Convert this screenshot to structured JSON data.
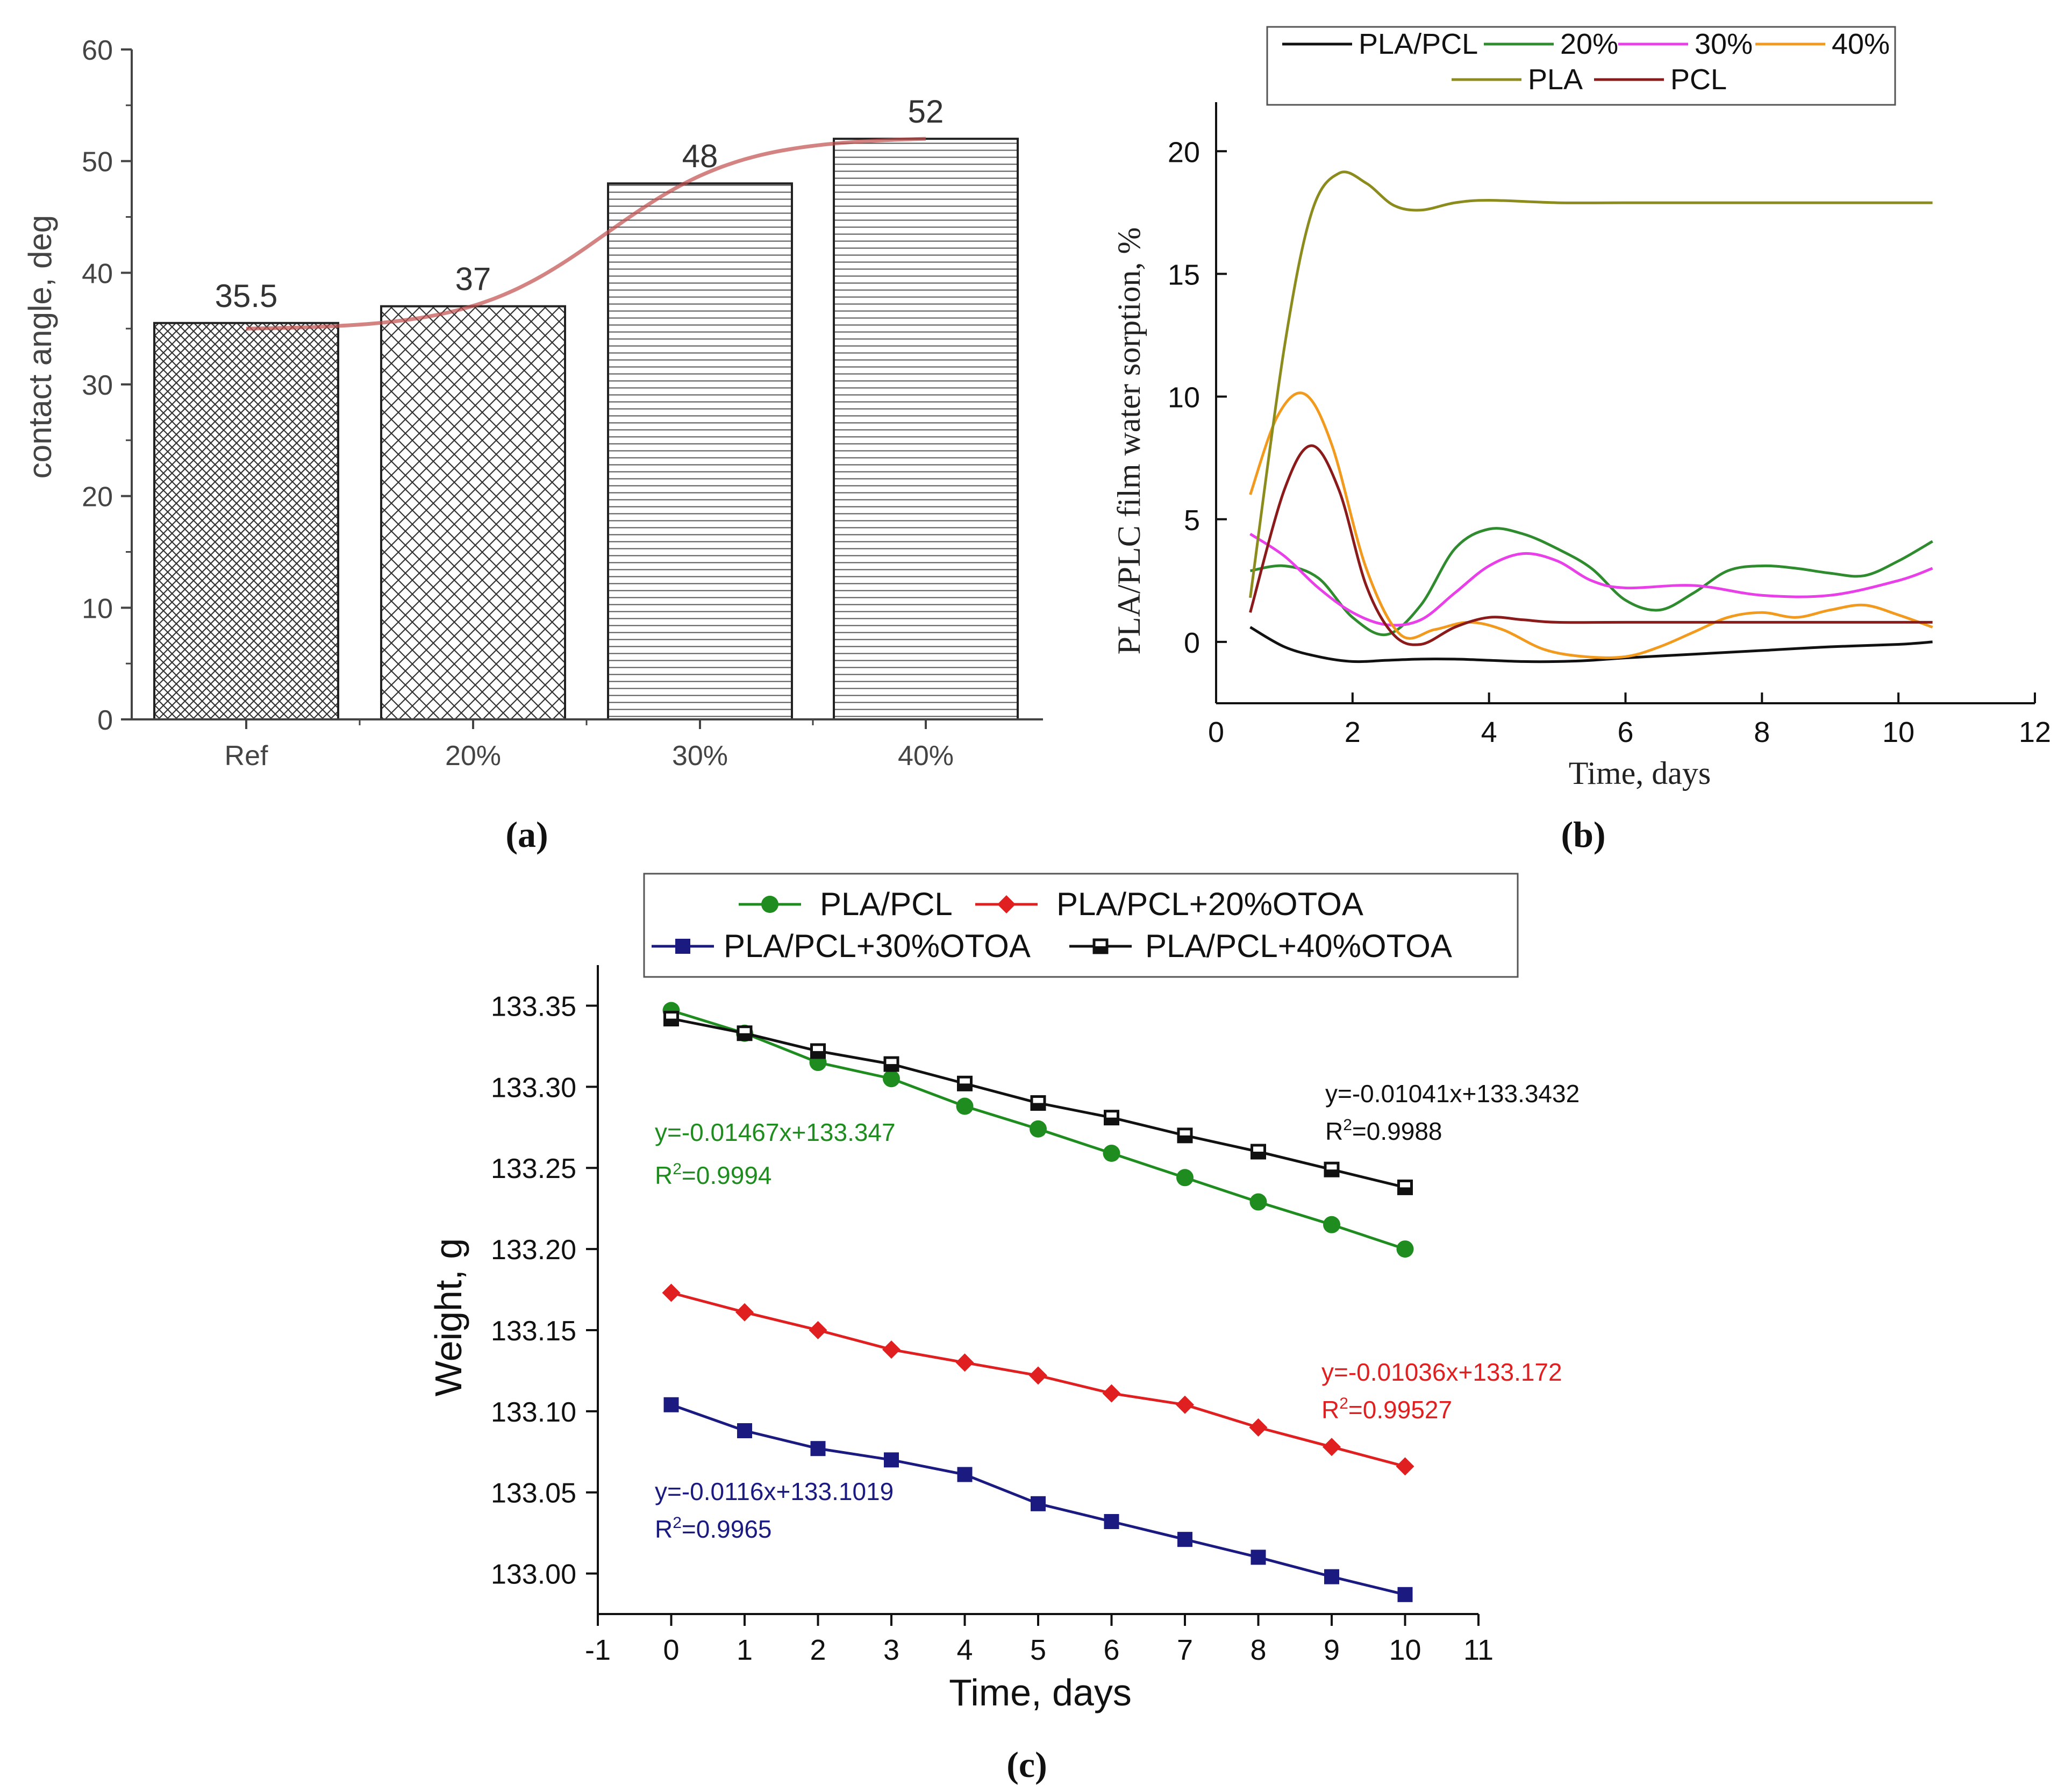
{
  "panel_labels": {
    "a": "(a)",
    "b": "(b)",
    "c": "(c)"
  },
  "chart_data": [
    {
      "id": "a",
      "type": "bar",
      "title": "",
      "xlabel": "",
      "ylabel": "contact angle, deg",
      "categories": [
        "Ref",
        "20%",
        "30%",
        "40%"
      ],
      "values": [
        35.5,
        37,
        48,
        52
      ],
      "data_labels": [
        "35.5",
        "37",
        "48",
        "52"
      ],
      "ylim": [
        0,
        60
      ],
      "yticks": [
        "0",
        "10",
        "20",
        "30",
        "40",
        "50",
        "60"
      ],
      "grid": false,
      "trend_curve_color": "#c0504d",
      "bar_patterns": [
        "dense-crosshatch",
        "crosshatch",
        "horizontal-lines",
        "horizontal-lines"
      ]
    },
    {
      "id": "b",
      "type": "line",
      "title": "",
      "xlabel": "Time, days",
      "ylabel": "PLA/PLC film water sorption, %",
      "xlim": [
        0,
        12
      ],
      "ylim": [
        -2.5,
        22
      ],
      "xticks": [
        "0",
        "2",
        "4",
        "6",
        "8",
        "10",
        "12"
      ],
      "yticks": [
        "0",
        "5",
        "10",
        "15",
        "20"
      ],
      "grid": false,
      "legend_position": "top",
      "series": [
        {
          "name": "PLA/PCL",
          "color": "#111111",
          "x": [
            0.5,
            1,
            1.5,
            2,
            2.5,
            3,
            3.5,
            4,
            4.5,
            5,
            5.5,
            6,
            7,
            8,
            9,
            10,
            10.5
          ],
          "y": [
            0.6,
            -0.2,
            -0.6,
            -0.8,
            -0.75,
            -0.7,
            -0.7,
            -0.75,
            -0.8,
            -0.8,
            -0.75,
            -0.65,
            -0.5,
            -0.35,
            -0.2,
            -0.1,
            0.0
          ]
        },
        {
          "name": "20%",
          "color": "#2e8b2e",
          "x": [
            0.5,
            1,
            1.5,
            2,
            2.5,
            3,
            3.5,
            4,
            4.5,
            5,
            5.5,
            6,
            6.5,
            7,
            7.5,
            8,
            8.5,
            9,
            9.5,
            10,
            10.5
          ],
          "y": [
            2.9,
            3.1,
            2.6,
            1.0,
            0.3,
            1.5,
            3.8,
            4.6,
            4.4,
            3.8,
            3.0,
            1.7,
            1.3,
            2.0,
            2.9,
            3.1,
            3.0,
            2.8,
            2.7,
            3.3,
            4.1
          ]
        },
        {
          "name": "30%",
          "color": "#e83fe8",
          "x": [
            0.5,
            1,
            1.5,
            2,
            2.5,
            3,
            3.5,
            4,
            4.5,
            5,
            5.5,
            6,
            7,
            8,
            9,
            10,
            10.5
          ],
          "y": [
            4.4,
            3.5,
            2.2,
            1.2,
            0.7,
            0.9,
            2.0,
            3.1,
            3.6,
            3.3,
            2.5,
            2.2,
            2.3,
            1.9,
            1.9,
            2.5,
            3.0
          ]
        },
        {
          "name": "40%",
          "color": "#f29a1e",
          "x": [
            0.5,
            0.9,
            1.3,
            1.7,
            2.2,
            2.7,
            3.2,
            3.7,
            4.2,
            4.8,
            5.4,
            6,
            6.5,
            7,
            7.5,
            8,
            8.5,
            9,
            9.5,
            10,
            10.5
          ],
          "y": [
            6.0,
            9.2,
            10.1,
            8.0,
            3.0,
            0.3,
            0.5,
            0.8,
            0.5,
            -0.3,
            -0.6,
            -0.6,
            -0.2,
            0.4,
            1.0,
            1.2,
            1.0,
            1.3,
            1.5,
            1.1,
            0.6
          ]
        },
        {
          "name": "PLA",
          "color": "#8c8c1e",
          "x": [
            0.5,
            1,
            1.4,
            1.8,
            2.2,
            2.6,
            3,
            3.5,
            4,
            5,
            6,
            8,
            10,
            10.5
          ],
          "y": [
            1.8,
            12.0,
            17.5,
            19.1,
            18.7,
            17.8,
            17.6,
            17.9,
            18.0,
            17.9,
            17.9,
            17.9,
            17.9,
            17.9
          ]
        },
        {
          "name": "PCL",
          "color": "#8b1a1a",
          "x": [
            0.5,
            1,
            1.4,
            1.8,
            2.2,
            2.6,
            3,
            3.5,
            4,
            4.5,
            5,
            6,
            8,
            10,
            10.5
          ],
          "y": [
            1.2,
            6.2,
            8.0,
            6.2,
            2.3,
            0.3,
            -0.1,
            0.6,
            1.0,
            0.9,
            0.8,
            0.8,
            0.8,
            0.8,
            0.8
          ]
        }
      ]
    },
    {
      "id": "c",
      "type": "line",
      "title": "",
      "xlabel": "Time, days",
      "ylabel": "Weight, g",
      "xlim": [
        -1,
        11
      ],
      "ylim": [
        132.975,
        133.375
      ],
      "xticks": [
        "-1",
        "0",
        "1",
        "2",
        "3",
        "4",
        "5",
        "6",
        "7",
        "8",
        "9",
        "10",
        "11"
      ],
      "yticks": [
        "133.00",
        "133.05",
        "133.10",
        "133.15",
        "133.20",
        "133.25",
        "133.30",
        "133.35"
      ],
      "grid": false,
      "legend_position": "top",
      "series": [
        {
          "name": "PLA/PCL",
          "color": "#1e8c1e",
          "marker": "circle",
          "x": [
            0,
            1,
            2,
            3,
            4,
            5,
            6,
            7,
            8,
            9,
            10
          ],
          "y": [
            133.347,
            133.333,
            133.315,
            133.305,
            133.288,
            133.274,
            133.259,
            133.244,
            133.229,
            133.215,
            133.2
          ]
        },
        {
          "name": "PLA/PCL+20%OTOA",
          "color": "#e02020",
          "marker": "diamond",
          "x": [
            0,
            1,
            2,
            3,
            4,
            5,
            6,
            7,
            8,
            9,
            10
          ],
          "y": [
            133.173,
            133.161,
            133.15,
            133.138,
            133.13,
            133.122,
            133.111,
            133.104,
            133.09,
            133.078,
            133.066
          ]
        },
        {
          "name": "PLA/PCL+30%OTOA",
          "color": "#1a1a80",
          "marker": "square",
          "x": [
            0,
            1,
            2,
            3,
            4,
            5,
            6,
            7,
            8,
            9,
            10
          ],
          "y": [
            133.104,
            133.088,
            133.077,
            133.07,
            133.061,
            133.043,
            133.032,
            133.021,
            133.01,
            132.998,
            132.987
          ]
        },
        {
          "name": "PLA/PCL+40%OTOA",
          "color": "#111111",
          "marker": "half-square",
          "x": [
            0,
            1,
            2,
            3,
            4,
            5,
            6,
            7,
            8,
            9,
            10
          ],
          "y": [
            133.342,
            133.333,
            133.322,
            133.314,
            133.302,
            133.29,
            133.281,
            133.27,
            133.26,
            133.249,
            133.238
          ]
        }
      ],
      "annotations": [
        {
          "series": "PLA/PCL+40%OTOA",
          "equation": "y=-0.01041x+133.3432",
          "r2_prefix": "R",
          "r2_sup": "2",
          "r2_value": "=0.9988",
          "color": "#111111"
        },
        {
          "series": "PLA/PCL",
          "equation": "y=-0.01467x+133.347",
          "r2_prefix": "R",
          "r2_sup": "2",
          "r2_value": "=0.9994",
          "color": "#1e8c1e"
        },
        {
          "series": "PLA/PCL+20%OTOA",
          "equation": "y=-0.01036x+133.172",
          "r2_prefix": "R",
          "r2_sup": "2",
          "r2_value": "=0.99527",
          "color": "#e02020"
        },
        {
          "series": "PLA/PCL+30%OTOA",
          "equation": "y=-0.0116x+133.1019",
          "r2_prefix": "R",
          "r2_sup": "2",
          "r2_value": "=0.9965",
          "color": "#1a1a80"
        }
      ]
    }
  ]
}
